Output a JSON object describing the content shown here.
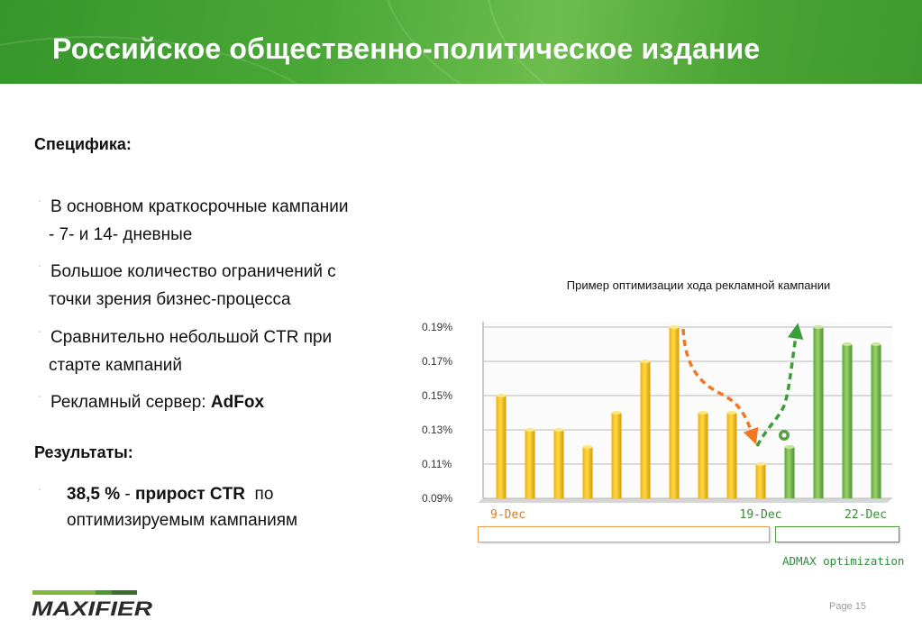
{
  "header": {
    "title": "Российское общественно-политическое издание"
  },
  "specifics": {
    "heading": "Специфика:",
    "bullets": [
      {
        "line1": "В основном краткосрочные кампании",
        "line2": "- 7- и 14- дневные"
      },
      {
        "line1": "Большое количество ограничений с",
        "line2": "точки зрения бизнес-процесса"
      },
      {
        "line1": "Сравнительно небольшой CTR при",
        "line2": "старте кампаний"
      },
      {
        "prefix": "Рекламный сервер: ",
        "bold": "AdFox"
      }
    ]
  },
  "results": {
    "heading": "Результаты:",
    "bold1": "38,5 %",
    "sep": " - ",
    "bold2": "прирост CTR",
    "rest": "  по",
    "line2": "оптимизируемым кампаниям"
  },
  "chart_data": {
    "type": "bar",
    "title": "Пример оптимизации хода рекламной кампании",
    "categories": [
      "9-Dec",
      "",
      "",
      "",
      "",
      "",
      "",
      "",
      "",
      "19-Dec",
      "",
      "",
      "",
      "22-Dec"
    ],
    "x_tick_labels": [
      "9-Dec",
      "19-Dec",
      "22-Dec"
    ],
    "values": [
      0.15,
      0.13,
      0.13,
      0.12,
      0.14,
      0.17,
      0.19,
      0.14,
      0.14,
      0.11,
      0.12,
      0.19,
      0.18,
      0.18
    ],
    "optimized_from_index": 10,
    "y_ticks": [
      "0.09%",
      "0.11%",
      "0.13%",
      "0.15%",
      "0.17%",
      "0.19%"
    ],
    "ylim": [
      0.09,
      0.19
    ],
    "y_unit": "%",
    "grid": true,
    "colors": {
      "before": "#f5b800",
      "after": "#6aae3f",
      "down_arrow": "#f07820",
      "up_arrow": "#3d9d3a"
    },
    "admax_label": "ADMAX optimization"
  },
  "brand": {
    "logo": "MAXIFIER"
  },
  "footer": {
    "page": "Page 15"
  }
}
